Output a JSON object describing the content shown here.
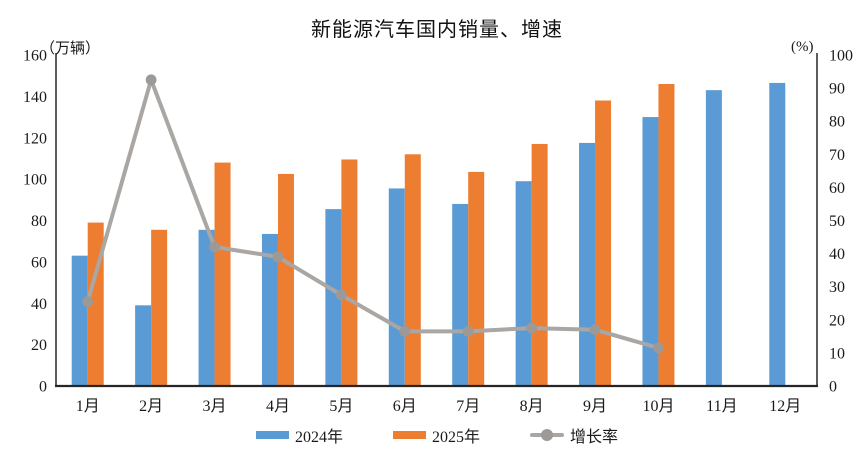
{
  "title": "新能源汽车国内销量、增速",
  "chart_data": {
    "type": "bar",
    "subtype": "grouped-bars-with-line-overlay",
    "title": "新能源汽车国内销量、增速",
    "categories": [
      "1月",
      "2月",
      "3月",
      "4月",
      "5月",
      "6月",
      "7月",
      "8月",
      "9月",
      "10月",
      "11月",
      "12月"
    ],
    "series": [
      {
        "name": "2024年",
        "type": "bar",
        "axis": "left",
        "color": "#5B9BD5",
        "values": [
          63,
          39,
          75.5,
          73.5,
          85.5,
          95.5,
          88,
          99,
          117.5,
          130,
          143,
          146.5
        ]
      },
      {
        "name": "2025年",
        "type": "bar",
        "axis": "left",
        "color": "#ED7D31",
        "values": [
          79,
          75.5,
          108,
          102.5,
          109.5,
          112,
          103.5,
          117,
          138,
          146
        ]
      },
      {
        "name": "增长率",
        "type": "line",
        "axis": "right",
        "color": "#A9A6A3",
        "marker_color": "#9C9996",
        "values": [
          25.5,
          92.5,
          42,
          39,
          27.5,
          16.5,
          16.5,
          17.5,
          17,
          11.5
        ]
      }
    ],
    "left_axis": {
      "unit": "（万辆）",
      "min": 0,
      "max": 160,
      "ticks": [
        0,
        20,
        40,
        60,
        80,
        100,
        120,
        140,
        160
      ]
    },
    "right_axis": {
      "unit": "(%)",
      "min": 0,
      "max": 100,
      "ticks": [
        0,
        10,
        20,
        30,
        40,
        50,
        60,
        70,
        80,
        90,
        100
      ]
    },
    "legend_position": "bottom",
    "grid": false,
    "axis_line_color": "#262626"
  }
}
